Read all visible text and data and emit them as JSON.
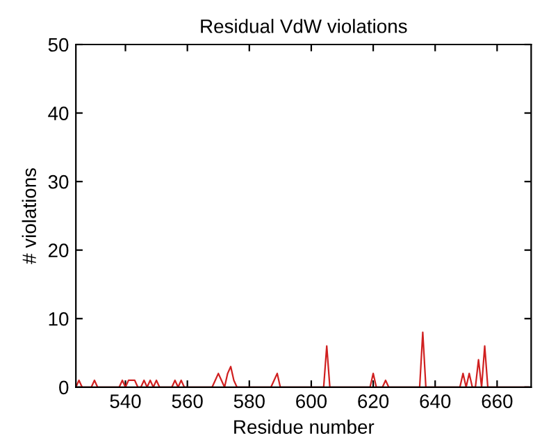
{
  "chart_data": {
    "type": "line",
    "title": "Residual VdW violations",
    "xlabel": "Residue number",
    "ylabel": "# violations",
    "series": [
      {
        "color": "#d02020",
        "x": [
          524,
          525,
          526,
          527,
          528,
          529,
          530,
          531,
          538,
          539,
          540,
          541,
          542,
          543,
          544,
          545,
          546,
          547,
          548,
          549,
          550,
          551,
          555,
          556,
          557,
          558,
          559,
          568,
          569,
          570,
          571,
          572,
          573,
          574,
          575,
          576,
          577,
          587,
          588,
          589,
          590,
          603,
          604,
          605,
          606,
          618,
          619,
          620,
          621,
          623,
          624,
          625,
          634,
          635,
          636,
          637,
          638,
          647,
          648,
          649,
          650,
          651,
          652,
          653,
          654,
          655,
          656,
          657,
          658,
          670
        ],
        "values": [
          0,
          1,
          0,
          0,
          0,
          0,
          1,
          0,
          0,
          1,
          0,
          1,
          1,
          1,
          0,
          0,
          1,
          0,
          1,
          0,
          1,
          0,
          0,
          1,
          0,
          1,
          0,
          0,
          1,
          2,
          1,
          0,
          2,
          3,
          1,
          0,
          0,
          0,
          1,
          2,
          0,
          0,
          0,
          6,
          0,
          0,
          0,
          2,
          0,
          0,
          1,
          0,
          0,
          0,
          8,
          0,
          0,
          0,
          0,
          2,
          0,
          2,
          0,
          0,
          4,
          0,
          6,
          0,
          0,
          0
        ]
      }
    ],
    "xlim": [
      524,
      671
    ],
    "ylim": [
      0,
      50
    ],
    "xticks": [
      540,
      560,
      580,
      600,
      620,
      640,
      660
    ],
    "yticks": [
      0,
      10,
      20,
      30,
      40,
      50
    ],
    "grid": false,
    "legend": false
  }
}
